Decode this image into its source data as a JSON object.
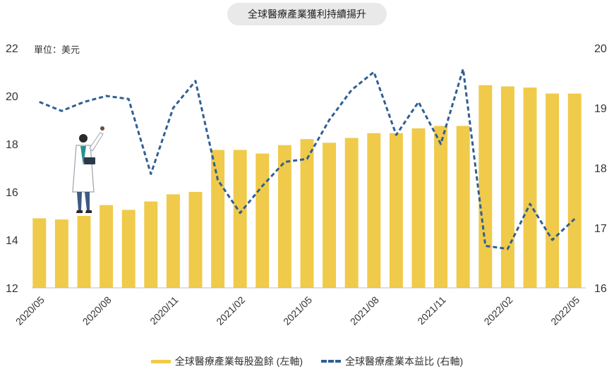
{
  "chart_data": {
    "type": "bar+line",
    "title": "全球醫療產業獲利持續揚升",
    "unit_label": "單位：美元",
    "categories": [
      "2020/05",
      "2020/06",
      "2020/07",
      "2020/08",
      "2020/09",
      "2020/10",
      "2020/11",
      "2020/12",
      "2021/01",
      "2021/02",
      "2021/03",
      "2021/04",
      "2021/05",
      "2021/06",
      "2021/07",
      "2021/08",
      "2021/09",
      "2021/10",
      "2021/11",
      "2021/12",
      "2022/01",
      "2022/02",
      "2022/03",
      "2022/04",
      "2022/05"
    ],
    "x_tick_labels": [
      "2020/05",
      "2020/08",
      "2020/11",
      "2021/02",
      "2021/05",
      "2021/08",
      "2021/11",
      "2022/02",
      "2022/05"
    ],
    "left_axis": {
      "ylim": [
        12,
        22
      ],
      "ticks": [
        12,
        14,
        16,
        18,
        20,
        22
      ]
    },
    "right_axis": {
      "ylim": [
        16,
        20
      ],
      "ticks": [
        16,
        17,
        18,
        19,
        20
      ]
    },
    "series": [
      {
        "name": "全球醫療產業每股盈餘 (左軸)",
        "type": "bar",
        "axis": "left",
        "color": "#f0ca4a",
        "values": [
          14.9,
          14.85,
          15.0,
          15.45,
          15.25,
          15.6,
          15.9,
          16.0,
          17.75,
          17.75,
          17.6,
          17.95,
          18.2,
          18.05,
          18.25,
          18.45,
          18.45,
          18.65,
          18.75,
          18.75,
          20.45,
          20.4,
          20.35,
          20.1,
          20.1
        ]
      },
      {
        "name": "全球醫療產業本益比 (右軸)",
        "type": "line",
        "axis": "right",
        "color": "#2f5f93",
        "values": [
          19.1,
          18.95,
          19.1,
          19.2,
          19.15,
          17.9,
          19.0,
          19.45,
          17.8,
          17.25,
          17.7,
          18.1,
          18.15,
          18.8,
          19.3,
          19.6,
          18.55,
          19.1,
          18.4,
          19.65,
          16.7,
          16.65,
          17.4,
          16.8,
          17.15
        ]
      }
    ]
  }
}
